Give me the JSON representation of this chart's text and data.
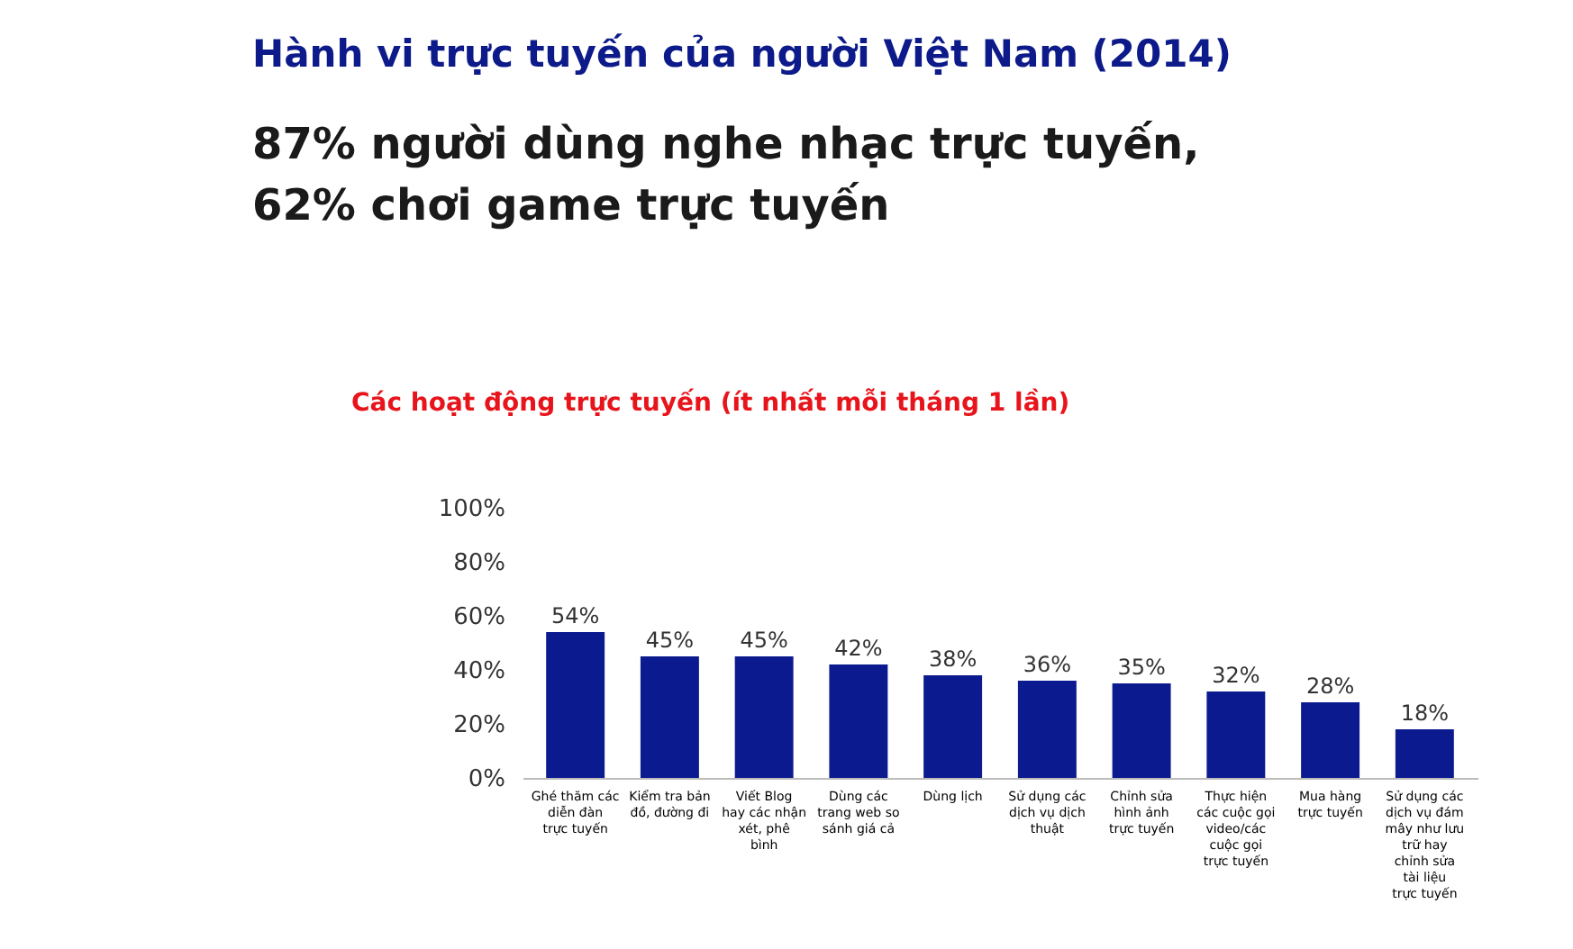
{
  "chart_data": {
    "type": "bar",
    "title": "Hành vi trực tuyến của người Việt Nam (2014)",
    "subtitle": "87% người dùng nghe nhạc trực tuyến, 62% chơi game trực tuyến",
    "annotations": [
      "Các hoạt động trực tuyến (ít nhất mỗi tháng 1 lần)"
    ],
    "categories": [
      "Ghé thăm các diễn đàn trực tuyến",
      "Kiểm tra bản đồ, đường đi",
      "Viết Blog hay các nhận xét, phê bình",
      "Dùng các trang web so sánh giá cả",
      "Dùng lịch",
      "Sử dụng các dịch vụ dịch thuật",
      "Chỉnh sửa hình ảnh trực tuyến",
      "Thực hiện các cuộc gọi video/các cuộc gọi trực tuyến",
      "Mua hàng trực tuyến",
      "Sử dụng các dịch vụ đám mây như lưu trữ hay chỉnh sửa tài liệu trực tuyến"
    ],
    "values": [
      54,
      45,
      45,
      42,
      38,
      36,
      35,
      32,
      28,
      18
    ],
    "value_labels": [
      "54%",
      "45%",
      "45%",
      "42%",
      "38%",
      "36%",
      "35%",
      "32%",
      "28%",
      "18%"
    ],
    "color": "#0c1a8f",
    "ylim": [
      0,
      100
    ],
    "yticks": [
      {
        "value": 0,
        "label": "0%"
      },
      {
        "value": 20,
        "label": "20%"
      },
      {
        "value": 40,
        "label": "40%"
      },
      {
        "value": 60,
        "label": "60%"
      },
      {
        "value": 80,
        "label": "80%"
      },
      {
        "value": 100,
        "label": "100%"
      }
    ],
    "grid": false
  }
}
